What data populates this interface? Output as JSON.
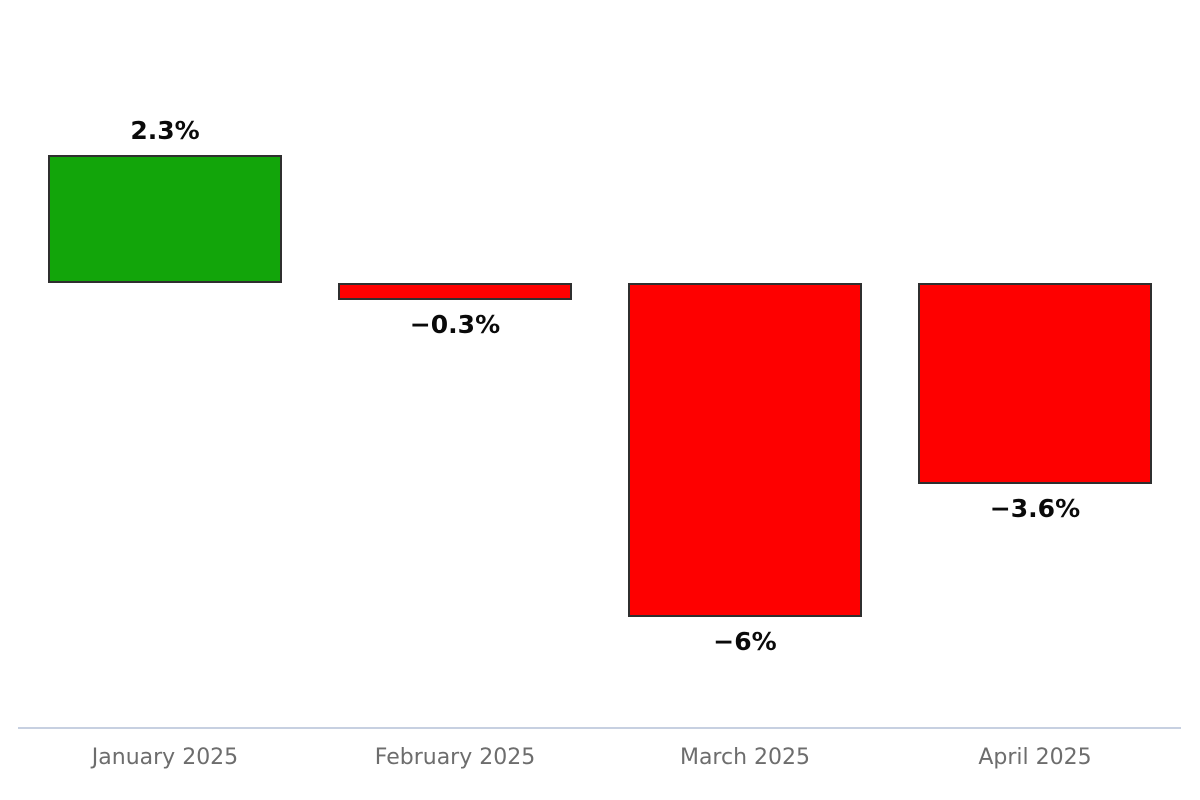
{
  "page": {
    "background": "#ffffff"
  },
  "chart_data": {
    "type": "bar",
    "title": "",
    "xlabel": "",
    "ylabel": "",
    "categories": [
      "January 2025",
      "February 2025",
      "March 2025",
      "April 2025"
    ],
    "values": [
      2.3,
      -0.3,
      -6,
      -3.6
    ],
    "value_labels": [
      "2.3%",
      "−0.3%",
      "−6%",
      "−3.6%"
    ],
    "unit": "%",
    "ylim": [
      -8,
      5
    ],
    "grid": false,
    "legend": false,
    "baseline_value": 0,
    "colors": {
      "positive_bar": "#12a50a",
      "negative_bar": "#fe0000",
      "bar_border": "#2f2f2f",
      "value_label": "#0a0a0a",
      "category_label": "#6d6d6d",
      "axis_line": "#c7d0e1",
      "background": "#ffffff"
    }
  }
}
